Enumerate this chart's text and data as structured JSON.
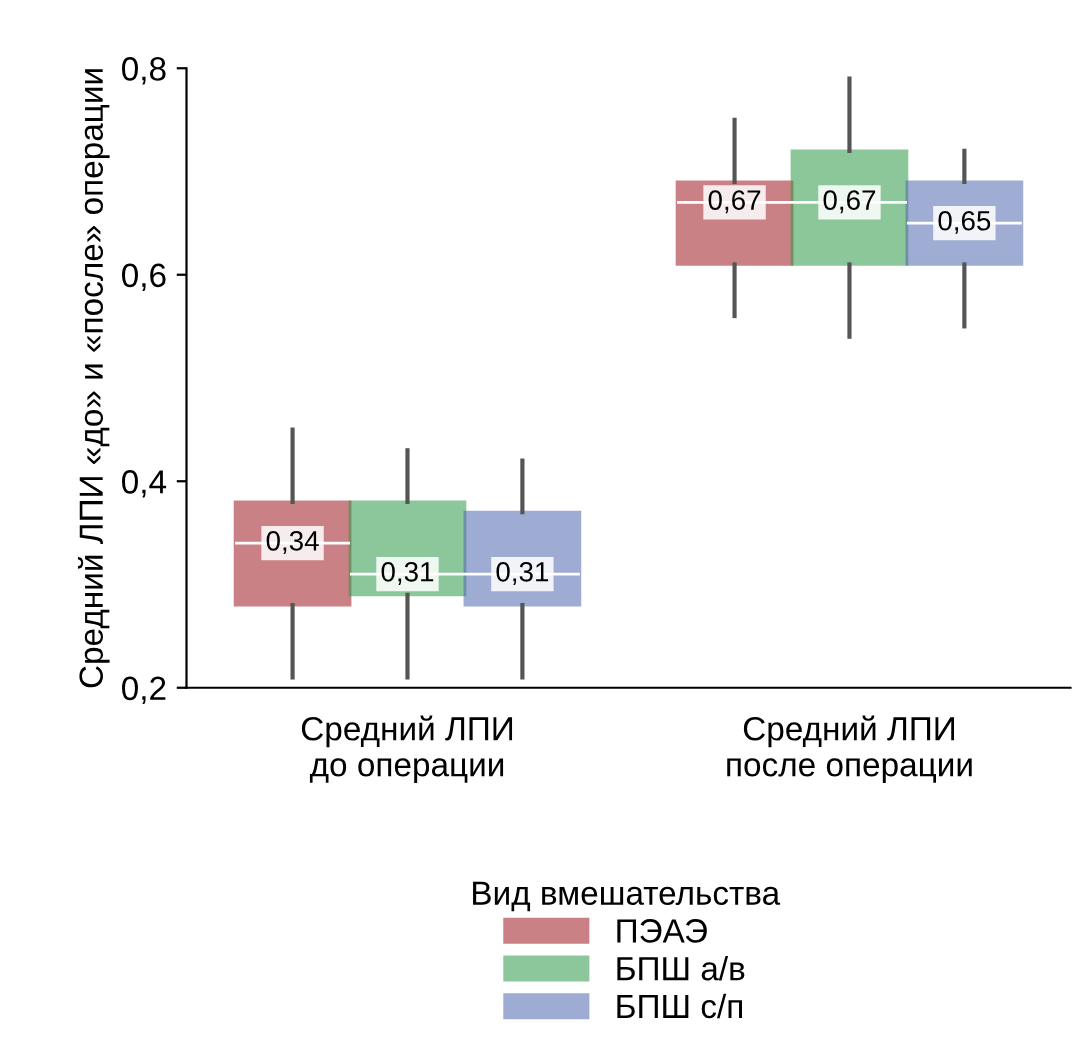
{
  "chart_data": {
    "type": "box",
    "ylabel": "Средний ЛПИ «до» и «после» операции",
    "categories": [
      "Средний ЛПИ\nдо операции",
      "Средний ЛПИ\nпосле операции"
    ],
    "ylim": [
      0.2,
      0.8
    ],
    "yticks": [
      {
        "value": 0.2,
        "label": "0,2"
      },
      {
        "value": 0.4,
        "label": "0,4"
      },
      {
        "value": 0.6,
        "label": "0,6"
      },
      {
        "value": 0.8,
        "label": "0,8"
      }
    ],
    "legend": "bottom",
    "legend_title": "Вид вмешательства",
    "series": [
      {
        "name": "ПЭАЭ",
        "color": "#9e1b24",
        "value_labels": [
          "0,34",
          "0,67"
        ],
        "boxes": [
          {
            "low": 0.21,
            "q1": 0.28,
            "median": 0.34,
            "q3": 0.38,
            "high": 0.45
          },
          {
            "low": 0.56,
            "q1": 0.61,
            "median": 0.67,
            "q3": 0.69,
            "high": 0.75
          }
        ]
      },
      {
        "name": "БПШ а/в",
        "color": "#2e9a48",
        "value_labels": [
          "0,31",
          "0,67"
        ],
        "boxes": [
          {
            "low": 0.21,
            "q1": 0.29,
            "median": 0.31,
            "q3": 0.38,
            "high": 0.43
          },
          {
            "low": 0.54,
            "q1": 0.61,
            "median": 0.67,
            "q3": 0.72,
            "high": 0.79
          }
        ]
      },
      {
        "name": "БПШ с/п",
        "color": "#5068b0",
        "value_labels": [
          "0,31",
          "0,65"
        ],
        "boxes": [
          {
            "low": 0.21,
            "q1": 0.28,
            "median": 0.31,
            "q3": 0.37,
            "high": 0.42
          },
          {
            "low": 0.55,
            "q1": 0.61,
            "median": 0.65,
            "q3": 0.69,
            "high": 0.72
          }
        ]
      }
    ]
  }
}
